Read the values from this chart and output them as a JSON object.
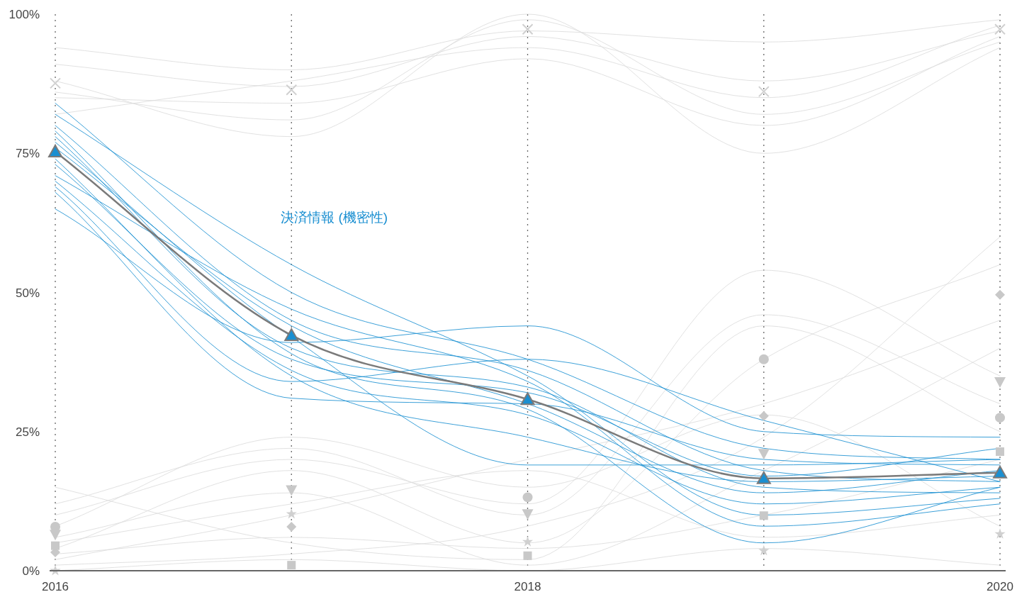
{
  "chart_data": {
    "type": "line",
    "x": [
      2016,
      2017,
      2018,
      2019,
      2020
    ],
    "xlim": [
      2016,
      2020
    ],
    "xticks": [
      2016,
      {
        "value": 2017,
        "label": null
      },
      2018,
      {
        "value": 2019,
        "label": null
      },
      2020
    ],
    "ylim": [
      0,
      100
    ],
    "yticks": [
      {
        "value": 0,
        "label": "0%"
      },
      {
        "value": 25,
        "label": "25%"
      },
      {
        "value": 50,
        "label": "50%"
      },
      {
        "value": 75,
        "label": "75%"
      },
      {
        "value": 100,
        "label": "100%"
      }
    ],
    "grid": "x",
    "series": [
      {
        "color": "#dcdcdc",
        "marker": "none",
        "values": [
          94,
          90,
          97,
          95,
          99
        ]
      },
      {
        "color": "#dcdcdc",
        "marker": "none",
        "values": [
          88,
          78,
          100,
          75,
          94
        ]
      },
      {
        "color": "#dcdcdc",
        "marker": "none",
        "values": [
          85,
          84,
          92,
          80,
          96
        ]
      },
      {
        "color": "#dcdcdc",
        "marker": "none",
        "values": [
          91,
          87,
          96,
          88,
          97
        ]
      },
      {
        "color": "#dcdcdc",
        "marker": "none",
        "values": [
          82,
          88,
          94,
          85,
          98
        ]
      },
      {
        "color": "#dcdcdc",
        "marker": "none",
        "values": [
          86,
          81,
          99,
          82,
          95
        ]
      },
      {
        "color": "#dcdcdc",
        "marker": "none",
        "values": [
          12,
          22,
          10,
          46,
          30
        ]
      },
      {
        "color": "#dcdcdc",
        "marker": "none",
        "values": [
          4,
          18,
          5,
          38,
          55
        ]
      },
      {
        "color": "#dcdcdc",
        "marker": "none",
        "values": [
          2,
          10,
          20,
          30,
          45
        ]
      },
      {
        "color": "#dcdcdc",
        "marker": "none",
        "values": [
          8,
          24,
          15,
          28,
          8
        ]
      },
      {
        "color": "#dcdcdc",
        "marker": "none",
        "values": [
          15,
          5,
          2,
          44,
          25
        ]
      },
      {
        "color": "#dcdcdc",
        "marker": "none",
        "values": [
          1,
          3,
          8,
          24,
          60
        ]
      },
      {
        "color": "#dcdcdc",
        "marker": "none",
        "values": [
          6,
          14,
          1,
          18,
          40
        ]
      },
      {
        "color": "#dcdcdc",
        "marker": "none",
        "values": [
          10,
          20,
          12,
          54,
          35
        ]
      },
      {
        "color": "#dcdcdc",
        "marker": "none",
        "values": [
          3,
          6,
          4,
          10,
          20
        ]
      },
      {
        "color": "#dcdcdc",
        "marker": "none",
        "values": [
          0,
          2,
          0,
          4,
          1
        ]
      },
      {
        "color": "#dcdcdc",
        "marker": "none",
        "values": [
          5,
          12,
          18,
          6,
          10
        ]
      },
      {
        "color": "#1a8fd1",
        "marker": "none",
        "values": [
          84,
          50,
          38,
          22,
          20
        ]
      },
      {
        "color": "#1a8fd1",
        "marker": "none",
        "values": [
          80,
          45,
          36,
          18,
          16
        ]
      },
      {
        "color": "#1a8fd1",
        "marker": "none",
        "values": [
          78,
          40,
          33,
          15,
          14
        ]
      },
      {
        "color": "#1a8fd1",
        "marker": "none",
        "values": [
          76,
          44,
          30,
          14,
          18
        ]
      },
      {
        "color": "#1a8fd1",
        "marker": "none",
        "values": [
          73,
          38,
          32,
          17,
          22
        ]
      },
      {
        "color": "#1a8fd1",
        "marker": "none",
        "values": [
          70,
          36,
          28,
          12,
          15
        ]
      },
      {
        "color": "#1a8fd1",
        "marker": "none",
        "values": [
          68,
          31,
          30,
          20,
          19
        ]
      },
      {
        "color": "#1a8fd1",
        "marker": "none",
        "values": [
          65,
          41,
          44,
          25,
          24
        ]
      },
      {
        "color": "#1a8fd1",
        "marker": "none",
        "values": [
          82,
          55,
          35,
          10,
          13
        ]
      },
      {
        "color": "#1a8fd1",
        "marker": "none",
        "values": [
          74,
          35,
          24,
          16,
          17
        ]
      },
      {
        "color": "#1a8fd1",
        "marker": "none",
        "values": [
          71,
          47,
          34,
          8,
          12
        ]
      },
      {
        "color": "#1a8fd1",
        "marker": "none",
        "values": [
          77,
          42,
          19,
          19,
          20
        ]
      },
      {
        "color": "#1a8fd1",
        "marker": "none",
        "values": [
          69,
          34,
          38,
          27,
          16
        ]
      },
      {
        "color": "#1a8fd1",
        "marker": "none",
        "values": [
          79,
          39,
          29,
          5,
          15
        ]
      },
      {
        "type": "scatter",
        "color": "#d0d0d0",
        "marker": "cross",
        "values": [
          87.6,
          86.4,
          97.3,
          86.1,
          97.3
        ]
      },
      {
        "type": "scatter",
        "color": "#c8c8c8",
        "marker": "circle",
        "values": [
          7.9,
          null,
          13.2,
          38,
          27.5
        ]
      },
      {
        "type": "scatter",
        "color": "#c8c8c8",
        "marker": "triangle-down",
        "values": [
          6.6,
          14.6,
          10.3,
          21.1,
          34
        ]
      },
      {
        "type": "scatter",
        "color": "#c8c8c8",
        "marker": "diamond",
        "values": [
          3.3,
          7.9,
          null,
          27.8,
          49.6
        ]
      },
      {
        "type": "scatter",
        "color": "#c8c8c8",
        "marker": "square",
        "values": [
          4.5,
          1,
          2.7,
          9.9,
          21.4
        ]
      },
      {
        "type": "scatter",
        "color": "#d0d0d0",
        "marker": "star",
        "values": [
          0,
          10.2,
          5.2,
          3.6,
          6.6
        ]
      },
      {
        "name": "決済情報 (機密性)",
        "color": "#1a8fd1",
        "marker": "triangle",
        "values": [
          75.3,
          42.3,
          30.8,
          16.6,
          17.6
        ]
      }
    ]
  }
}
